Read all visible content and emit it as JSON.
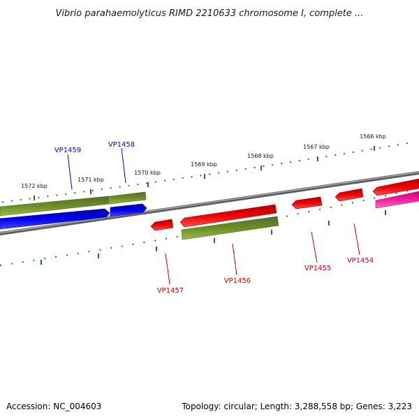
{
  "title": "Vibrio parahaemolyticus RIMD 2210633 chromosome I, complete ...",
  "footer": {
    "accession": "Accession: NC_004603",
    "summary": "Topology: circular; Length: 3,288,558 bp; Genes: 3,223"
  },
  "colors": {
    "backbone": "#7a7a7a",
    "ticks": "#1f7a1f",
    "olive": "#6b8e23",
    "blue": "#0000ee",
    "red": "#ee0000",
    "magenta": "#ff1aa0",
    "label_blue": "#0000cc",
    "label_red": "#cc0000"
  },
  "scale_labels": [
    "1572 kbp",
    "1571 kbp",
    "1570 kbp",
    "1569 kbp",
    "1568 kbp",
    "1567 kbp",
    "1566 kbp"
  ],
  "genes": [
    {
      "label": "VP1459",
      "color": "blue"
    },
    {
      "label": "VP1458",
      "color": "blue"
    },
    {
      "label": "VP1457",
      "color": "red"
    },
    {
      "label": "VP1456",
      "color": "red"
    },
    {
      "label": "VP1455",
      "color": "red"
    },
    {
      "label": "VP1454",
      "color": "red"
    }
  ]
}
